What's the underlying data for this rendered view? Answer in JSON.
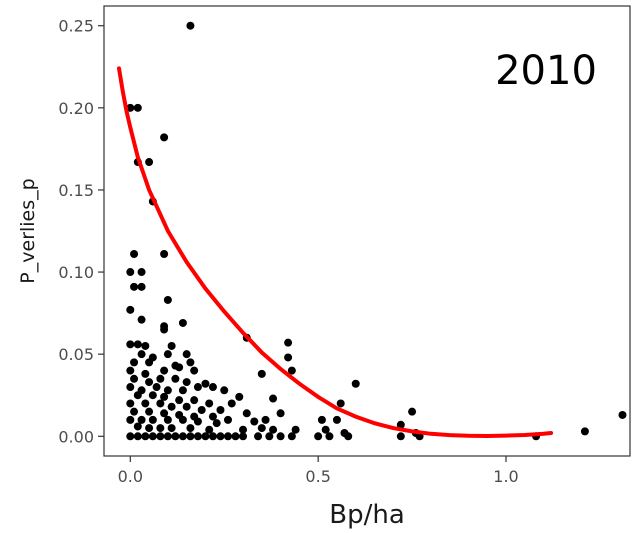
{
  "chart_data": {
    "type": "scatter",
    "title": "",
    "annotation": "2010",
    "xlabel": "Bp/ha",
    "ylabel": "P_verlies_p",
    "xlim": [
      -0.07,
      1.33
    ],
    "ylim": [
      -0.012,
      0.262
    ],
    "x_ticks": [
      0.0,
      0.5,
      1.0
    ],
    "x_tick_labels": [
      "0.0",
      "0.5",
      "1.0"
    ],
    "y_ticks": [
      0.0,
      0.05,
      0.1,
      0.15,
      0.2,
      0.25
    ],
    "y_tick_labels": [
      "0.00",
      "0.05",
      "0.10",
      "0.15",
      "0.20",
      "0.25"
    ],
    "grid": false,
    "legend": "none",
    "point_color": "#000000",
    "curve_color": "#ff0000",
    "points": [
      [
        0.16,
        0.25
      ],
      [
        0.0,
        0.2
      ],
      [
        0.02,
        0.2
      ],
      [
        0.02,
        0.167
      ],
      [
        0.05,
        0.167
      ],
      [
        0.09,
        0.182
      ],
      [
        0.06,
        0.143
      ],
      [
        0.01,
        0.111
      ],
      [
        0.09,
        0.111
      ],
      [
        0.0,
        0.1
      ],
      [
        0.03,
        0.1
      ],
      [
        0.01,
        0.091
      ],
      [
        0.03,
        0.091
      ],
      [
        0.1,
        0.083
      ],
      [
        0.0,
        0.077
      ],
      [
        0.03,
        0.071
      ],
      [
        0.14,
        0.069
      ],
      [
        0.09,
        0.067
      ],
      [
        0.09,
        0.065
      ],
      [
        0.0,
        0.056
      ],
      [
        0.02,
        0.056
      ],
      [
        0.04,
        0.055
      ],
      [
        0.11,
        0.055
      ],
      [
        0.03,
        0.05
      ],
      [
        0.06,
        0.048
      ],
      [
        0.1,
        0.05
      ],
      [
        0.15,
        0.05
      ],
      [
        0.01,
        0.045
      ],
      [
        0.05,
        0.045
      ],
      [
        0.12,
        0.043
      ],
      [
        0.16,
        0.045
      ],
      [
        0.31,
        0.06
      ],
      [
        0.42,
        0.057
      ],
      [
        0.42,
        0.048
      ],
      [
        0.0,
        0.04
      ],
      [
        0.04,
        0.038
      ],
      [
        0.09,
        0.04
      ],
      [
        0.13,
        0.042
      ],
      [
        0.17,
        0.04
      ],
      [
        0.43,
        0.04
      ],
      [
        0.01,
        0.035
      ],
      [
        0.05,
        0.033
      ],
      [
        0.08,
        0.035
      ],
      [
        0.12,
        0.035
      ],
      [
        0.15,
        0.033
      ],
      [
        0.2,
        0.032
      ],
      [
        0.35,
        0.038
      ],
      [
        0.6,
        0.032
      ],
      [
        0.0,
        0.03
      ],
      [
        0.03,
        0.028
      ],
      [
        0.07,
        0.03
      ],
      [
        0.1,
        0.028
      ],
      [
        0.14,
        0.028
      ],
      [
        0.18,
        0.03
      ],
      [
        0.22,
        0.03
      ],
      [
        0.25,
        0.028
      ],
      [
        0.02,
        0.025
      ],
      [
        0.06,
        0.025
      ],
      [
        0.09,
        0.024
      ],
      [
        0.13,
        0.022
      ],
      [
        0.17,
        0.022
      ],
      [
        0.21,
        0.02
      ],
      [
        0.29,
        0.024
      ],
      [
        0.38,
        0.023
      ],
      [
        0.0,
        0.02
      ],
      [
        0.04,
        0.02
      ],
      [
        0.08,
        0.02
      ],
      [
        0.11,
        0.018
      ],
      [
        0.15,
        0.018
      ],
      [
        0.19,
        0.016
      ],
      [
        0.24,
        0.016
      ],
      [
        0.27,
        0.02
      ],
      [
        0.56,
        0.02
      ],
      [
        0.75,
        0.015
      ],
      [
        0.01,
        0.015
      ],
      [
        0.05,
        0.015
      ],
      [
        0.09,
        0.014
      ],
      [
        0.13,
        0.013
      ],
      [
        0.17,
        0.012
      ],
      [
        0.22,
        0.012
      ],
      [
        0.31,
        0.014
      ],
      [
        0.4,
        0.014
      ],
      [
        0.0,
        0.01
      ],
      [
        0.03,
        0.01
      ],
      [
        0.06,
        0.01
      ],
      [
        0.1,
        0.01
      ],
      [
        0.14,
        0.01
      ],
      [
        0.18,
        0.009
      ],
      [
        0.23,
        0.008
      ],
      [
        0.26,
        0.01
      ],
      [
        0.33,
        0.009
      ],
      [
        0.36,
        0.01
      ],
      [
        0.51,
        0.01
      ],
      [
        0.55,
        0.01
      ],
      [
        0.72,
        0.007
      ],
      [
        0.02,
        0.006
      ],
      [
        0.05,
        0.005
      ],
      [
        0.08,
        0.005
      ],
      [
        0.11,
        0.005
      ],
      [
        0.16,
        0.005
      ],
      [
        0.21,
        0.004
      ],
      [
        0.3,
        0.004
      ],
      [
        0.35,
        0.005
      ],
      [
        0.38,
        0.004
      ],
      [
        0.44,
        0.004
      ],
      [
        0.52,
        0.004
      ],
      [
        0.57,
        0.002
      ],
      [
        0.76,
        0.002
      ],
      [
        0.0,
        0.0
      ],
      [
        0.02,
        0.0
      ],
      [
        0.04,
        0.0
      ],
      [
        0.06,
        0.0
      ],
      [
        0.08,
        0.0
      ],
      [
        0.1,
        0.0
      ],
      [
        0.12,
        0.0
      ],
      [
        0.14,
        0.0
      ],
      [
        0.16,
        0.0
      ],
      [
        0.18,
        0.0
      ],
      [
        0.2,
        0.0
      ],
      [
        0.22,
        0.0
      ],
      [
        0.24,
        0.0
      ],
      [
        0.26,
        0.0
      ],
      [
        0.28,
        0.0
      ],
      [
        0.3,
        0.0
      ],
      [
        0.34,
        0.0
      ],
      [
        0.37,
        0.0
      ],
      [
        0.4,
        0.0
      ],
      [
        0.43,
        0.0
      ],
      [
        0.5,
        0.0
      ],
      [
        0.53,
        0.0
      ],
      [
        0.58,
        0.0
      ],
      [
        0.72,
        0.0
      ],
      [
        0.77,
        0.0
      ],
      [
        1.08,
        0.0
      ],
      [
        1.21,
        0.003
      ],
      [
        1.31,
        0.013
      ]
    ],
    "curve": [
      [
        -0.03,
        0.224
      ],
      [
        -0.02,
        0.21
      ],
      [
        -0.01,
        0.198
      ],
      [
        0.0,
        0.188
      ],
      [
        0.02,
        0.17
      ],
      [
        0.05,
        0.15
      ],
      [
        0.1,
        0.125
      ],
      [
        0.15,
        0.106
      ],
      [
        0.2,
        0.09
      ],
      [
        0.25,
        0.076
      ],
      [
        0.3,
        0.063
      ],
      [
        0.35,
        0.051
      ],
      [
        0.4,
        0.041
      ],
      [
        0.45,
        0.032
      ],
      [
        0.5,
        0.024
      ],
      [
        0.55,
        0.017
      ],
      [
        0.6,
        0.012
      ],
      [
        0.65,
        0.008
      ],
      [
        0.7,
        0.005
      ],
      [
        0.75,
        0.003
      ],
      [
        0.8,
        0.0015
      ],
      [
        0.85,
        0.0007
      ],
      [
        0.9,
        0.0003
      ],
      [
        0.95,
        0.0002
      ],
      [
        1.0,
        0.0004
      ],
      [
        1.05,
        0.0008
      ],
      [
        1.1,
        0.0015
      ],
      [
        1.12,
        0.002
      ]
    ]
  }
}
